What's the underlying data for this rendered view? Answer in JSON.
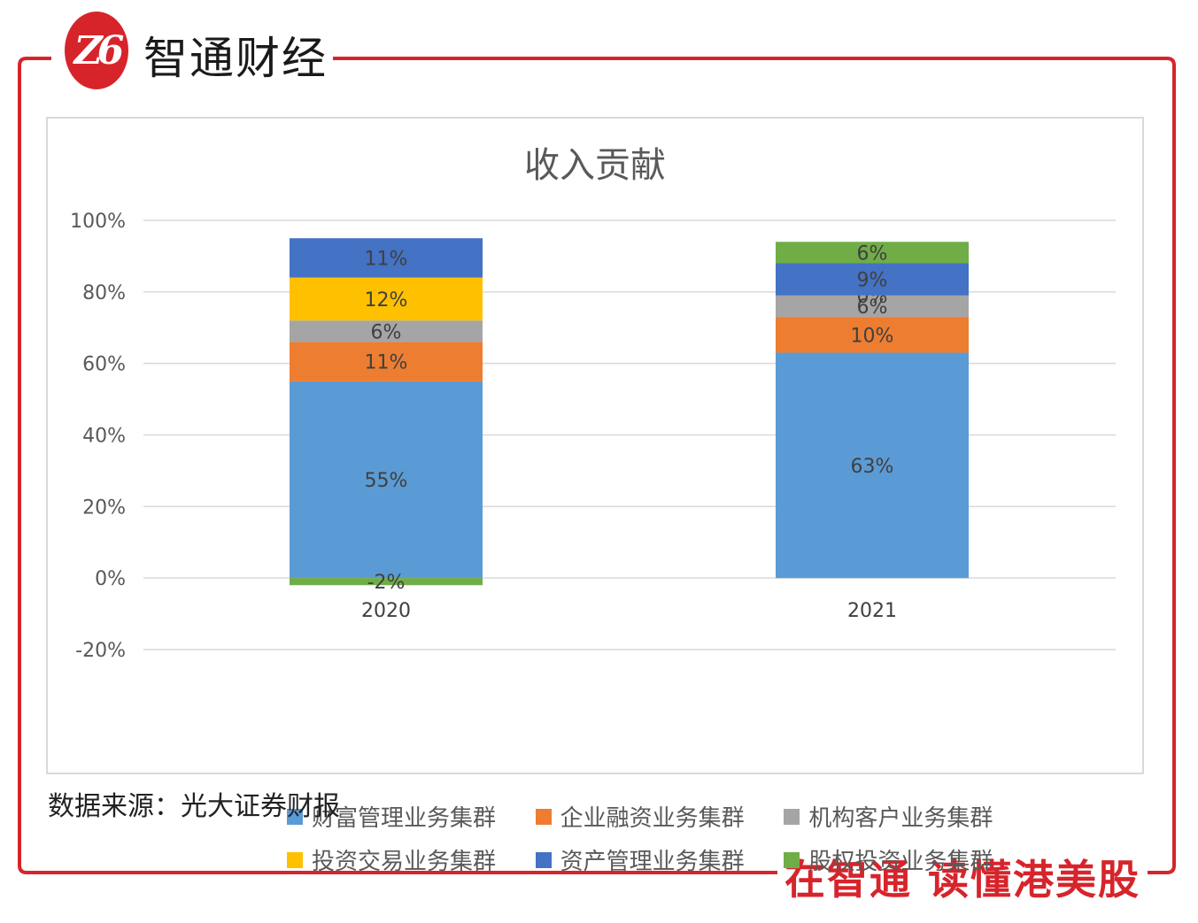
{
  "brand": {
    "logo_glyph": "Z6",
    "name": "智通财经",
    "slogan": "在智通  读懂港美股",
    "accent_color": "#d7242b"
  },
  "source_note": "数据来源：光大证券财报",
  "chart_data": {
    "type": "bar",
    "stacked": true,
    "title": "收入贡献",
    "xlabel": "",
    "ylabel": "",
    "categories": [
      "2020",
      "2021"
    ],
    "ylim": [
      -20,
      100
    ],
    "yticks": [
      "100%",
      "80%",
      "60%",
      "40%",
      "20%",
      "0%",
      "-20%"
    ],
    "ytick_values": [
      100,
      80,
      60,
      40,
      20,
      0,
      -20
    ],
    "grid": true,
    "legend_position": "bottom",
    "series": [
      {
        "name": "财富管理业务集群",
        "color": "#5b9bd5",
        "values": [
          55,
          63
        ],
        "labels": [
          "55%",
          "63%"
        ]
      },
      {
        "name": "企业融资业务集群",
        "color": "#ed7d31",
        "values": [
          11,
          10
        ],
        "labels": [
          "11%",
          "10%"
        ]
      },
      {
        "name": "机构客户业务集群",
        "color": "#a5a5a5",
        "values": [
          6,
          6
        ],
        "labels": [
          "6%",
          "6%"
        ]
      },
      {
        "name": "投资交易业务集群",
        "color": "#ffc000",
        "values": [
          12,
          0
        ],
        "labels": [
          "12%",
          "0%"
        ]
      },
      {
        "name": "资产管理业务集群",
        "color": "#4472c4",
        "values": [
          11,
          9
        ],
        "labels": [
          "11%",
          "9%"
        ]
      },
      {
        "name": "股权投资业务集群",
        "color": "#70ad47",
        "values": [
          -2,
          6
        ],
        "labels": [
          "-2%",
          "6%"
        ]
      }
    ]
  }
}
